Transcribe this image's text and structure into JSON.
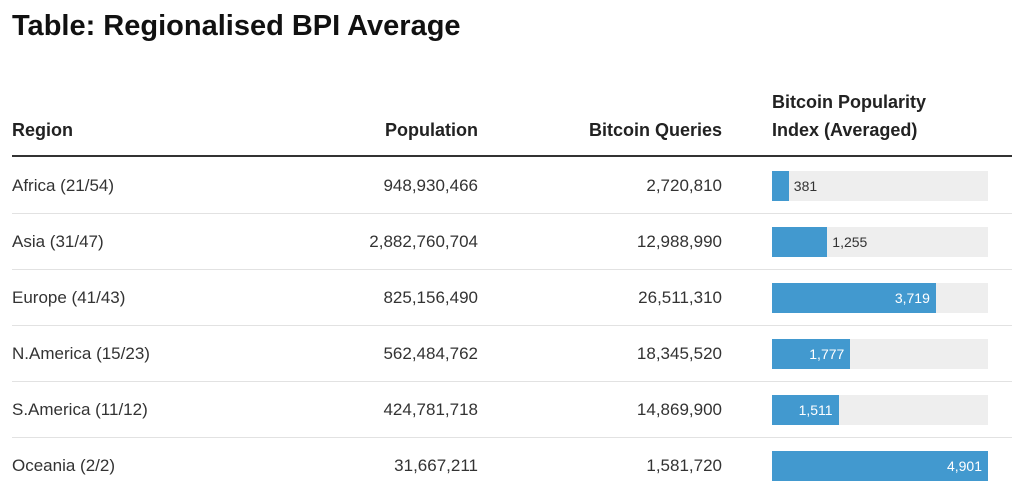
{
  "title": "Table: Regionalised BPI Average",
  "table": {
    "columns": [
      "Region",
      "Population",
      "Bitcoin Queries",
      "Bitcoin Popularity Index (Averaged)"
    ],
    "rows": [
      [
        "Africa (21/54)",
        "948,930,466",
        "2,720,810"
      ],
      [
        "Asia (31/47)",
        "2,882,760,704",
        "12,988,990"
      ],
      [
        "Europe (41/43)",
        "825,156,490",
        "26,511,310"
      ],
      [
        "N.America (15/23)",
        "562,484,762",
        "18,345,520"
      ],
      [
        "S.America (11/12)",
        "424,781,718",
        "14,869,900"
      ],
      [
        "Oceania (2/2)",
        "31,667,211",
        "1,581,720"
      ]
    ],
    "bpi_values": [
      381,
      1255,
      3719,
      1777,
      1511,
      4901
    ],
    "bpi_value_labels": [
      "381",
      "1,255",
      "3,719",
      "1,777",
      "1,511",
      "4,901"
    ],
    "bar_color": "#4299cf"
  }
}
